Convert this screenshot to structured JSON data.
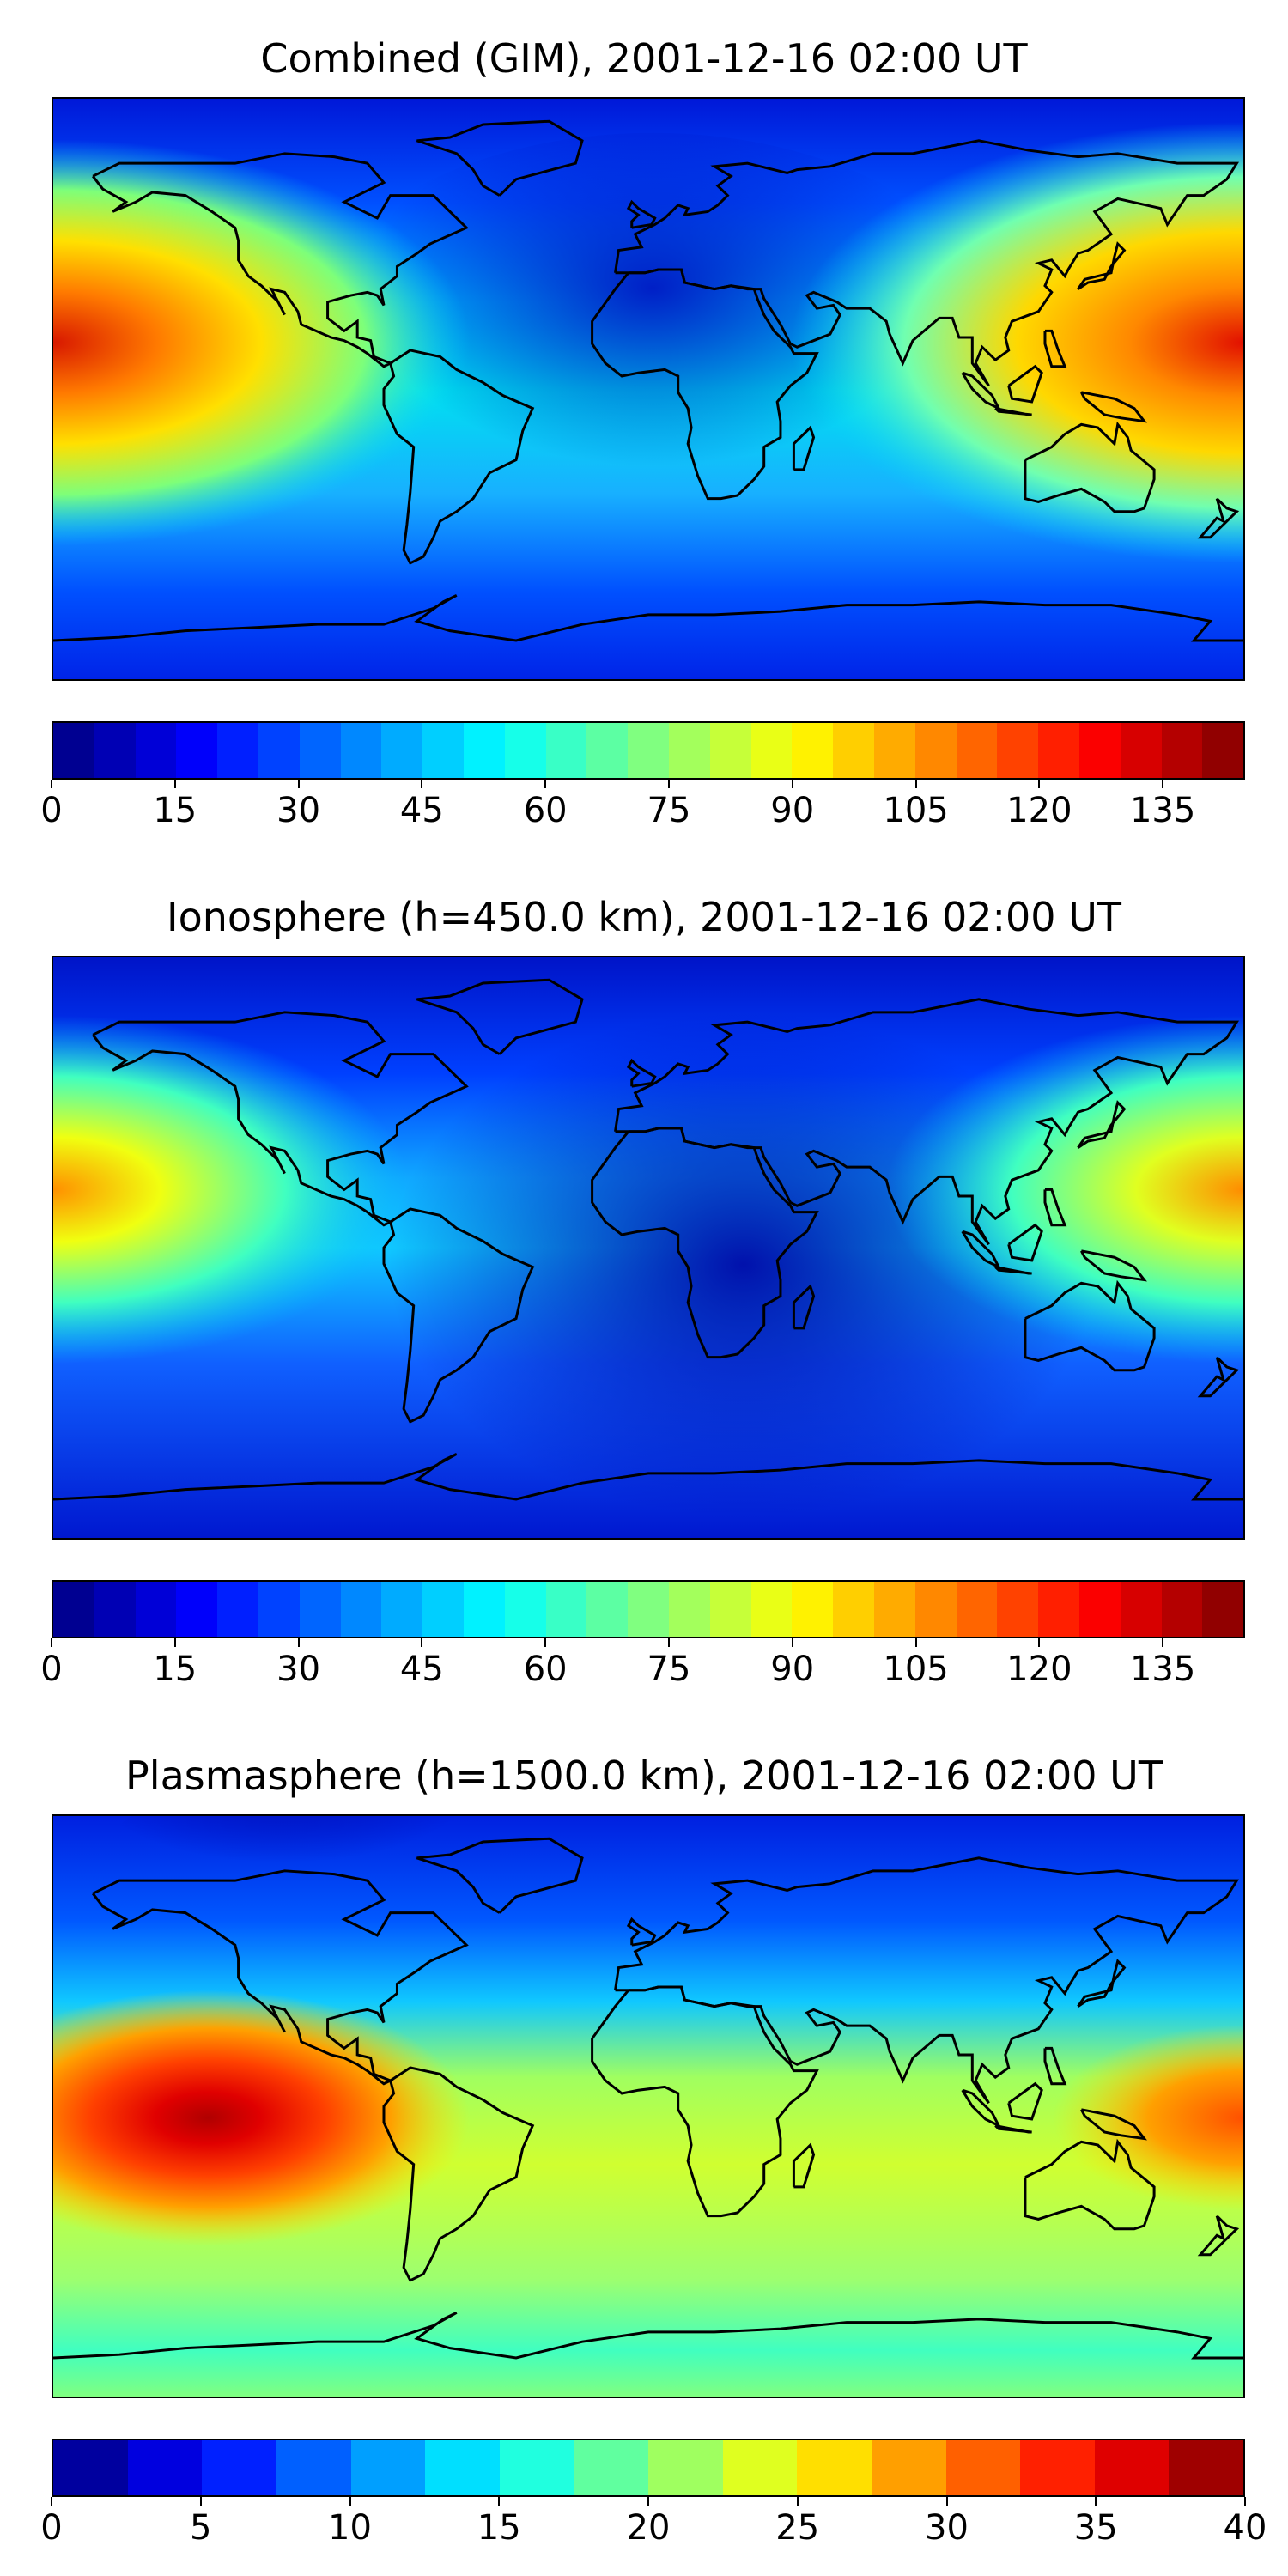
{
  "panels": [
    {
      "title": "Combined (GIM), 2001-12-16 02:00 UT",
      "colorbar": {
        "min": 0,
        "max": 145,
        "levels": 29,
        "ticks": [
          "0",
          "15",
          "30",
          "45",
          "60",
          "75",
          "90",
          "105",
          "120",
          "135"
        ],
        "tick_values": [
          0,
          15,
          30,
          45,
          60,
          75,
          90,
          105,
          120,
          135
        ]
      },
      "field": "combined"
    },
    {
      "title": "Ionosphere  (h=450.0 km), 2001-12-16 02:00 UT",
      "colorbar": {
        "min": 0,
        "max": 145,
        "levels": 29,
        "ticks": [
          "0",
          "15",
          "30",
          "45",
          "60",
          "75",
          "90",
          "105",
          "120",
          "135"
        ],
        "tick_values": [
          0,
          15,
          30,
          45,
          60,
          75,
          90,
          105,
          120,
          135
        ]
      },
      "field": "ionosphere"
    },
    {
      "title": "Plasmasphere (h=1500.0 km), 2001-12-16 02:00 UT",
      "colorbar": {
        "min": 0,
        "max": 40,
        "levels": 16,
        "ticks": [
          "0",
          "5",
          "10",
          "15",
          "20",
          "25",
          "30",
          "35",
          "40"
        ],
        "tick_values": [
          0,
          5,
          10,
          15,
          20,
          25,
          30,
          35,
          40
        ]
      },
      "field": "plasmasphere"
    }
  ],
  "colormap": "jet",
  "coastline_color": "#000000"
}
